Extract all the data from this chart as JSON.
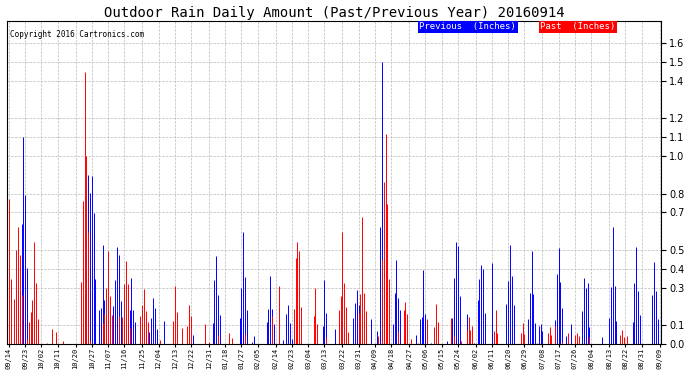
{
  "title": "Outdoor Rain Daily Amount (Past/Previous Year) 20160914",
  "copyright": "Copyright 2016 Cartronics.com",
  "legend_labels": [
    "Previous  (Inches)",
    "Past  (Inches)"
  ],
  "legend_bg_colors": [
    "#0000ff",
    "#ff0000"
  ],
  "y_ticks": [
    0.0,
    0.1,
    0.3,
    0.4,
    0.5,
    0.7,
    0.8,
    1.0,
    1.1,
    1.2,
    1.4,
    1.5,
    1.6
  ],
  "ylim": [
    0.0,
    1.72
  ],
  "background_color": "#ffffff",
  "grid_color": "#bbbbbb",
  "blue_color": "#0000ff",
  "red_color": "#ff0000",
  "title_fontsize": 10,
  "x_tick_dates": [
    "09/14",
    "09/23",
    "10/02",
    "10/11",
    "10/20",
    "10/27",
    "11/07",
    "11/16",
    "11/25",
    "12/04",
    "12/13",
    "12/22",
    "12/31",
    "01/18",
    "01/27",
    "02/05",
    "02/14",
    "02/23",
    "03/04",
    "03/13",
    "03/22",
    "03/31",
    "04/09",
    "04/18",
    "04/27",
    "05/06",
    "05/15",
    "05/24",
    "06/02",
    "06/11",
    "06/20",
    "06/29",
    "07/08",
    "07/17",
    "07/26",
    "08/04",
    "08/13",
    "08/22",
    "08/31",
    "09/09"
  ],
  "n_days": 362
}
